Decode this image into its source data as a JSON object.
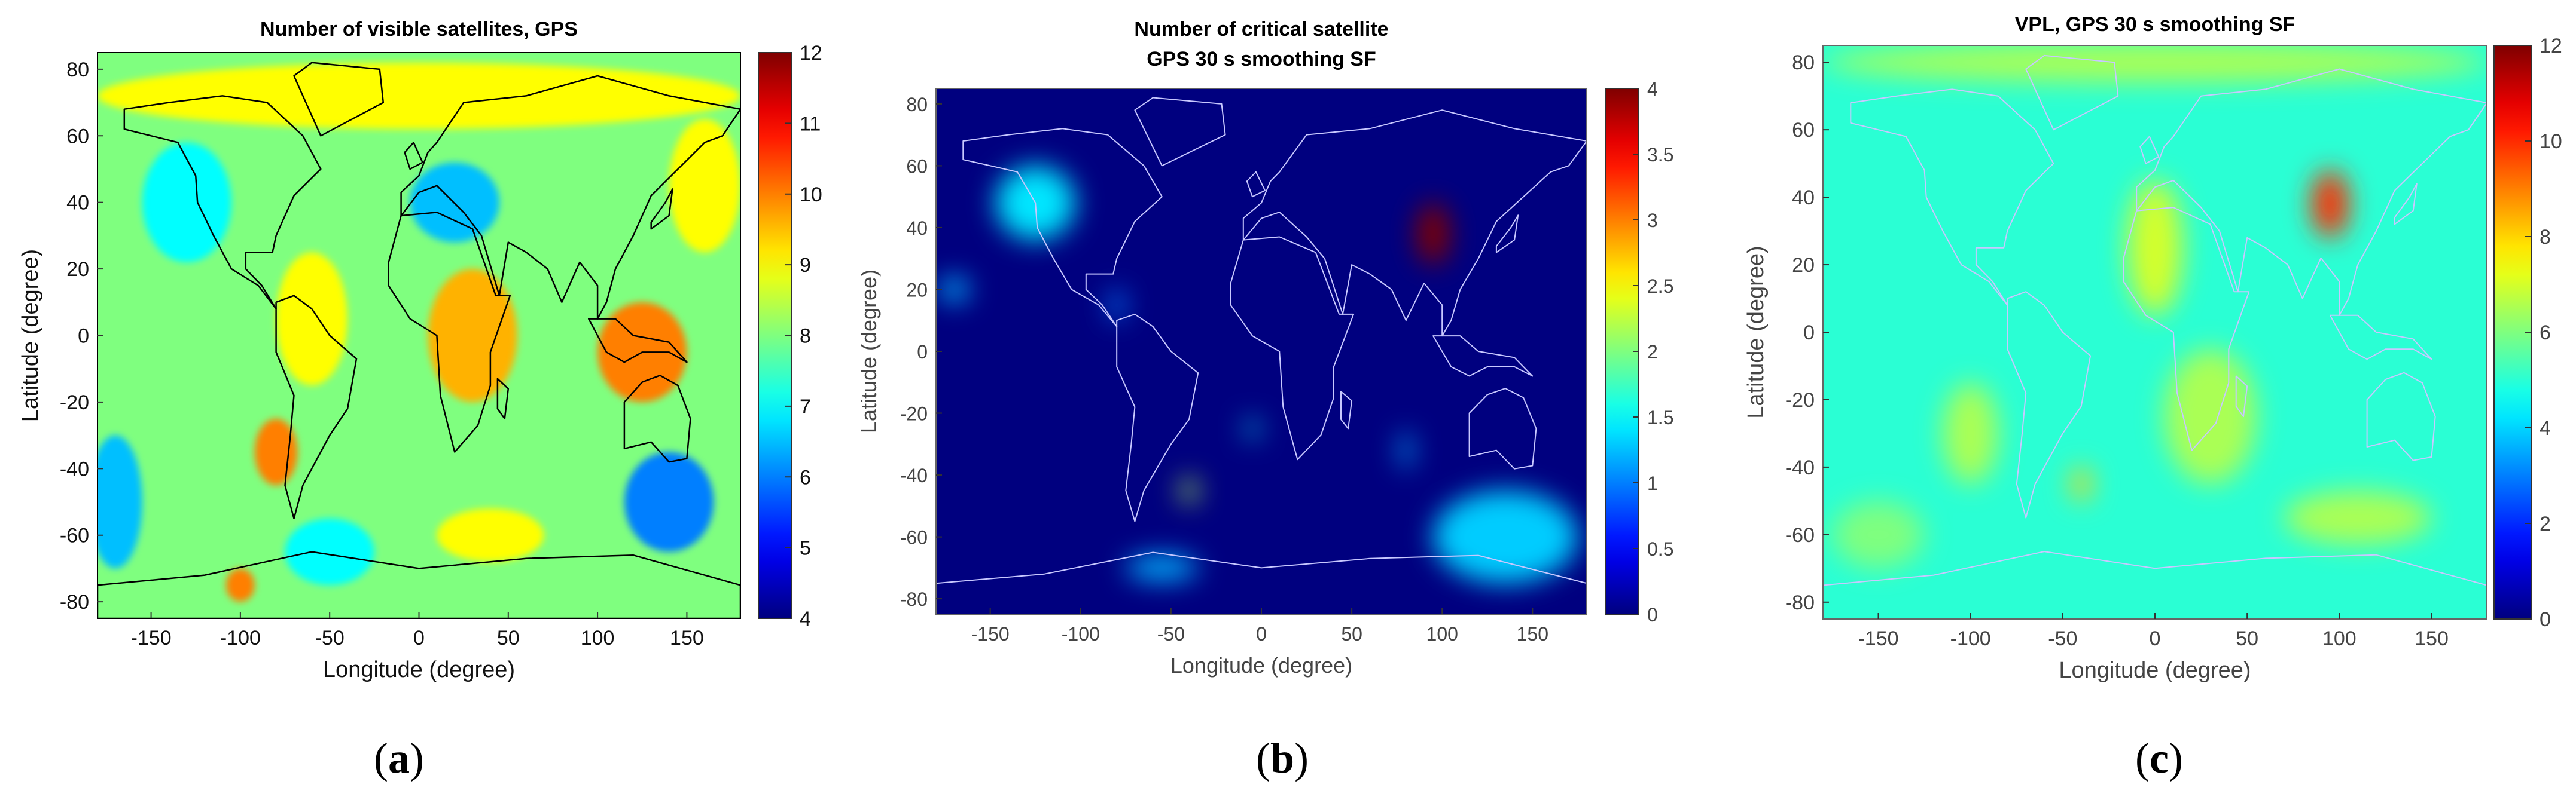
{
  "colors": {
    "jet": [
      "#00007f",
      "#0000ff",
      "#007fff",
      "#00ffff",
      "#7fff7f",
      "#ffff00",
      "#ff7f00",
      "#ff0000",
      "#7f0000"
    ],
    "coast_dark": "#000000",
    "coast_light": "#c8c8ff"
  },
  "panels": [
    {
      "caption": "a",
      "chart_data": {
        "type": "heatmap",
        "title": "Number of visible satellites, GPS",
        "xlabel": "Longitude (degree)",
        "ylabel": "Latitude (degree)",
        "xlim": [
          -180,
          180
        ],
        "ylim": [
          -85,
          85
        ],
        "xticks": [
          "-150",
          "-100",
          "-50",
          "0",
          "50",
          "100",
          "150"
        ],
        "yticks": [
          "80",
          "60",
          "40",
          "20",
          "0",
          "-20",
          "-40",
          "-60",
          "-80"
        ],
        "colorbar": {
          "min": 4,
          "max": 12,
          "ticks": [
            "12",
            "11",
            "10",
            "9",
            "8",
            "7",
            "6",
            "5",
            "4"
          ]
        },
        "base_value": 8,
        "zones": [
          {
            "lon": 0,
            "lat": 72,
            "rlon": 180,
            "rlat": 10,
            "value": 9
          },
          {
            "lon": -130,
            "lat": 40,
            "rlon": 25,
            "rlat": 18,
            "value": 7
          },
          {
            "lon": -60,
            "lat": 5,
            "rlon": 20,
            "rlat": 20,
            "value": 9
          },
          {
            "lon": 30,
            "lat": 0,
            "rlon": 25,
            "rlat": 20,
            "value": 9.6
          },
          {
            "lon": 125,
            "lat": -5,
            "rlon": 25,
            "rlat": 15,
            "value": 10
          },
          {
            "lon": -80,
            "lat": -35,
            "rlon": 12,
            "rlat": 10,
            "value": 10
          },
          {
            "lon": 20,
            "lat": 40,
            "rlon": 25,
            "rlat": 12,
            "value": 6.5
          },
          {
            "lon": 140,
            "lat": -50,
            "rlon": 25,
            "rlat": 15,
            "value": 6
          },
          {
            "lon": -170,
            "lat": -50,
            "rlon": 15,
            "rlat": 20,
            "value": 6.5
          },
          {
            "lon": 40,
            "lat": -60,
            "rlon": 30,
            "rlat": 8,
            "value": 9
          },
          {
            "lon": -50,
            "lat": -65,
            "rlon": 25,
            "rlat": 10,
            "value": 7
          },
          {
            "lon": 160,
            "lat": 45,
            "rlon": 20,
            "rlat": 20,
            "value": 9
          },
          {
            "lon": -100,
            "lat": -75,
            "rlon": 8,
            "rlat": 5,
            "value": 10
          }
        ]
      }
    },
    {
      "caption": "b",
      "chart_data": {
        "type": "heatmap",
        "title": "Number of critical satellite",
        "subtitle": "GPS 30 s smoothing SF",
        "xlabel": "Longitude (degree)",
        "ylabel": "Latitude (degree)",
        "xlim": [
          -180,
          180
        ],
        "ylim": [
          -85,
          85
        ],
        "xticks": [
          "-150",
          "-100",
          "-50",
          "0",
          "50",
          "100",
          "150"
        ],
        "yticks": [
          "80",
          "60",
          "40",
          "20",
          "0",
          "-20",
          "-40",
          "-60",
          "-80"
        ],
        "colorbar": {
          "min": 0,
          "max": 4,
          "ticks": [
            "4",
            "3.5",
            "3",
            "2.5",
            "2",
            "1.5",
            "1",
            "0.5",
            "0"
          ]
        },
        "base_value": 0,
        "zones": [
          {
            "lon": -125,
            "lat": 48,
            "rlon": 22,
            "rlat": 12,
            "value": 1.4
          },
          {
            "lon": 95,
            "lat": 38,
            "rlon": 9,
            "rlat": 10,
            "value": 4
          },
          {
            "lon": -170,
            "lat": 20,
            "rlon": 8,
            "rlat": 4,
            "value": 1.2
          },
          {
            "lon": 135,
            "lat": -60,
            "rlon": 40,
            "rlat": 15,
            "value": 1.3
          },
          {
            "lon": -55,
            "lat": -70,
            "rlon": 20,
            "rlat": 4,
            "value": 1.2
          },
          {
            "lon": -40,
            "lat": -45,
            "rlon": 4,
            "rlat": 4,
            "value": 2.2
          },
          {
            "lon": -5,
            "lat": -25,
            "rlon": 3,
            "rlat": 3,
            "value": 1.5
          },
          {
            "lon": 80,
            "lat": -32,
            "rlon": 3,
            "rlat": 6,
            "value": 1.2
          },
          {
            "lon": -80,
            "lat": 15,
            "rlon": 4,
            "rlat": 5,
            "value": 1.0
          }
        ]
      }
    },
    {
      "caption": "c",
      "chart_data": {
        "type": "heatmap",
        "title": "VPL, GPS 30 s smoothing SF",
        "xlabel": "Longitude (degree)",
        "ylabel": "Latitude (degree)",
        "xlim": [
          -180,
          180
        ],
        "ylim": [
          -85,
          85
        ],
        "xticks": [
          "-150",
          "-100",
          "-50",
          "0",
          "50",
          "100",
          "150"
        ],
        "yticks": [
          "80",
          "60",
          "40",
          "20",
          "0",
          "-20",
          "-40",
          "-60",
          "-80"
        ],
        "colorbar": {
          "min": 0,
          "max": 12,
          "ticks": [
            "12",
            "10",
            "8",
            "6",
            "4",
            "2",
            "0"
          ]
        },
        "base_value": 5,
        "zones": [
          {
            "lon": 95,
            "lat": 38,
            "rlon": 10,
            "rlat": 10,
            "value": 10
          },
          {
            "lon": 0,
            "lat": 25,
            "rlon": 15,
            "rlat": 20,
            "value": 7
          },
          {
            "lon": -100,
            "lat": -30,
            "rlon": 15,
            "rlat": 15,
            "value": 6.5
          },
          {
            "lon": 30,
            "lat": -25,
            "rlon": 25,
            "rlat": 20,
            "value": 6.5
          },
          {
            "lon": 110,
            "lat": -55,
            "rlon": 40,
            "rlat": 8,
            "value": 6.5
          },
          {
            "lon": -150,
            "lat": -60,
            "rlon": 25,
            "rlat": 10,
            "value": 6
          },
          {
            "lon": 0,
            "lat": 80,
            "rlon": 180,
            "rlat": 6,
            "value": 6.5
          },
          {
            "lon": -40,
            "lat": -45,
            "rlon": 5,
            "rlat": 5,
            "value": 8
          }
        ]
      }
    }
  ]
}
